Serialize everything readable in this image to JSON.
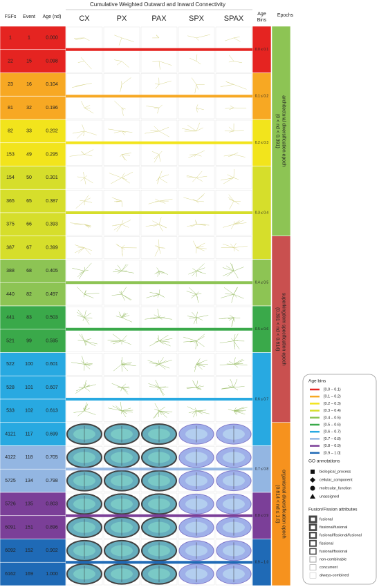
{
  "title": "Cumulative Weighted Outward and Inward Connectivity",
  "columns": [
    "FSFs",
    "Event",
    "Age (nd)"
  ],
  "network_columns": [
    "CX",
    "PX",
    "PAX",
    "SPX",
    "SPAX"
  ],
  "age_bins_header": "Age Bins",
  "epochs_header": "Epochs",
  "rows": [
    [
      "1",
      "1",
      "0.000"
    ],
    [
      "22",
      "15",
      "0.098"
    ],
    [
      "23",
      "16",
      "0.104"
    ],
    [
      "81",
      "32",
      "0.196"
    ],
    [
      "82",
      "33",
      "0.202"
    ],
    [
      "153",
      "49",
      "0.295"
    ],
    [
      "154",
      "50",
      "0.301"
    ],
    [
      "365",
      "65",
      "0.387"
    ],
    [
      "375",
      "66",
      "0.393"
    ],
    [
      "387",
      "67",
      "0.399"
    ],
    [
      "388",
      "68",
      "0.405"
    ],
    [
      "440",
      "82",
      "0.497"
    ],
    [
      "441",
      "83",
      "0.503"
    ],
    [
      "521",
      "99",
      "0.595"
    ],
    [
      "522",
      "100",
      "0.601"
    ],
    [
      "528",
      "101",
      "0.607"
    ],
    [
      "533",
      "102",
      "0.613"
    ],
    [
      "4121",
      "117",
      "0.699"
    ],
    [
      "4122",
      "118",
      "0.705"
    ],
    [
      "5725",
      "134",
      "0.798"
    ],
    [
      "5726",
      "135",
      "0.803"
    ],
    [
      "6091",
      "151",
      "0.896"
    ],
    [
      "6092",
      "152",
      "0.902"
    ],
    [
      "6162",
      "169",
      "1.000"
    ]
  ],
  "age_bins": [
    {
      "label": "0.0 ≤ 0.1",
      "color": "#e52421"
    },
    {
      "label": "0.1 ≤ 0.2",
      "color": "#f7a823"
    },
    {
      "label": "0.2 ≤ 0.3",
      "color": "#f2e41c"
    },
    {
      "label": "0.3 ≤ 0.4",
      "color": "#d6de2b"
    },
    {
      "label": "0.4 ≤ 0.5",
      "color": "#8dc454"
    },
    {
      "label": "0.5 ≤ 0.6",
      "color": "#3aa94a"
    },
    {
      "label": "0.6 ≤ 0.7",
      "color": "#28a9e1"
    },
    {
      "label": "0.7 ≤ 0.8",
      "color": "#93b6e2"
    },
    {
      "label": "0.8 ≤ 0.9",
      "color": "#7b3f98"
    },
    {
      "label": "0.9 – 1.0",
      "color": "#1f6ab6"
    }
  ],
  "epochs": [
    {
      "name": "architectural diversification epoch",
      "range": "(0 < nd < 0.391)",
      "color": "#8dc454"
    },
    {
      "name": "superkingdom specification epoch",
      "range": "(0.391 < nd < 0.614)",
      "color": "#c9504f"
    },
    {
      "name": "organismal diversification epoch",
      "range": "(0.614 < nd ≤ 1.0)",
      "color": "#f6921e"
    }
  ],
  "legend": {
    "age_bins": {
      "title": "Age bins",
      "items": [
        "[0.0 – 0.1)",
        "[0.1 – 0.2)",
        "[0.2 – 0.3)",
        "[0.3 – 0.4)",
        "[0.4 – 0.5)",
        "[0.5 – 0.6)",
        "[0.6 – 0.7)",
        "[0.7 – 0.8)",
        "[0.8 – 0.9)",
        "[0.9 – 1.0]"
      ]
    },
    "go": {
      "title": "GO annotations",
      "items": [
        "biological_process",
        "cellular_component",
        "molecular_function",
        "unassigned"
      ]
    },
    "fusion": {
      "title": "Fusion/Fission attributes",
      "items": [
        "fusional",
        "fissional/fusional",
        "fusional/fissional/fusional",
        "fissional",
        "fusional/fissional",
        "non-combinable",
        "concurrent",
        "always-combined"
      ]
    }
  }
}
